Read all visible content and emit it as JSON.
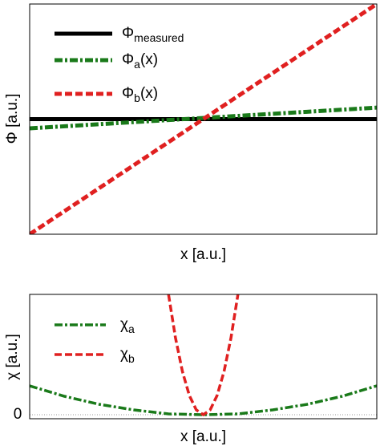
{
  "chart_data": [
    {
      "type": "line",
      "x_label": "x [a.u.]",
      "y_label": "Φ [a.u.]",
      "xlim": [
        0,
        1
      ],
      "ylim": [
        0,
        1
      ],
      "legend": "upper left",
      "series": [
        {
          "name": "Φ",
          "name_sub": "measured",
          "color": "#000000",
          "style": "solid",
          "x": [
            0,
            1
          ],
          "values": [
            0.5,
            0.5
          ]
        },
        {
          "name": "Φ",
          "name_sub": "a",
          "name_suffix": "(x)",
          "color": "#1a7a1a",
          "style": "dashdot",
          "x": [
            0,
            1
          ],
          "values": [
            0.46,
            0.55
          ]
        },
        {
          "name": "Φ",
          "name_sub": "b",
          "name_suffix": "(x)",
          "color": "#e02020",
          "style": "dashed",
          "x": [
            0,
            1
          ],
          "values": [
            0,
            1
          ]
        }
      ]
    },
    {
      "type": "line",
      "x_label": "x [a.u.]",
      "y_label": "χ [a.u.]",
      "xlim": [
        0,
        1
      ],
      "ylim": [
        -0.05,
        1.5
      ],
      "yticks": [
        0
      ],
      "legend": "upper left",
      "series": [
        {
          "name": "χ",
          "name_sub": "a",
          "color": "#1a7a1a",
          "style": "dashdot",
          "x": [
            0,
            0.1,
            0.2,
            0.3,
            0.4,
            0.5,
            0.6,
            0.7,
            0.8,
            0.9,
            1
          ],
          "values": [
            0.36,
            0.23,
            0.13,
            0.06,
            0.01,
            0,
            0.01,
            0.06,
            0.13,
            0.23,
            0.36
          ]
        },
        {
          "name": "χ",
          "name_sub": "b",
          "color": "#e02020",
          "style": "dashed",
          "x": [
            0.4,
            0.42,
            0.44,
            0.46,
            0.48,
            0.5,
            0.52,
            0.54,
            0.56,
            0.58,
            0.6
          ],
          "values": [
            1.5,
            0.96,
            0.54,
            0.24,
            0.06,
            0,
            0.06,
            0.24,
            0.54,
            0.96,
            1.5
          ]
        }
      ]
    }
  ]
}
